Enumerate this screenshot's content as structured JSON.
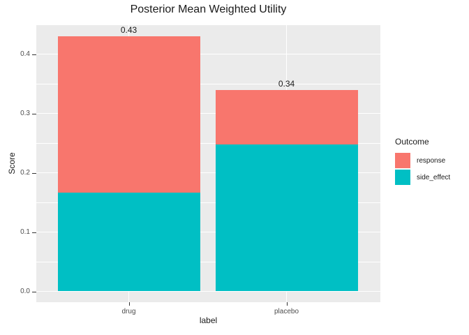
{
  "chart_data": {
    "type": "bar",
    "variant": "stacked",
    "title": "Posterior Mean Weighted Utility",
    "xlabel": "label",
    "ylabel": "Score",
    "categories": [
      "drug",
      "placebo"
    ],
    "series": [
      {
        "name": "response",
        "color": "#F8766D",
        "values": [
          0.263,
          0.092
        ]
      },
      {
        "name": "side_effect",
        "color": "#00BFC4",
        "values": [
          0.167,
          0.248
        ]
      }
    ],
    "stack_order_bottom_to_top": [
      "side_effect",
      "response"
    ],
    "totals": [
      0.43,
      0.34
    ],
    "total_labels": [
      "0.43",
      "0.34"
    ],
    "yticks": [
      0.0,
      0.1,
      0.2,
      0.3,
      0.4
    ],
    "ytick_labels": [
      "0.0",
      "0.1",
      "0.2",
      "0.3",
      "0.4"
    ],
    "ylim": [
      0,
      0.449
    ],
    "grid": true,
    "legend": {
      "title": "Outcome",
      "position": "right",
      "entries": [
        "response",
        "side_effect"
      ]
    },
    "colors": {
      "panel_background": "#EBEBEB",
      "gridline": "#FFFFFF",
      "tick_text": "#4D4D4D",
      "text": "#1A1A1A",
      "tick_mark": "#333333"
    }
  }
}
